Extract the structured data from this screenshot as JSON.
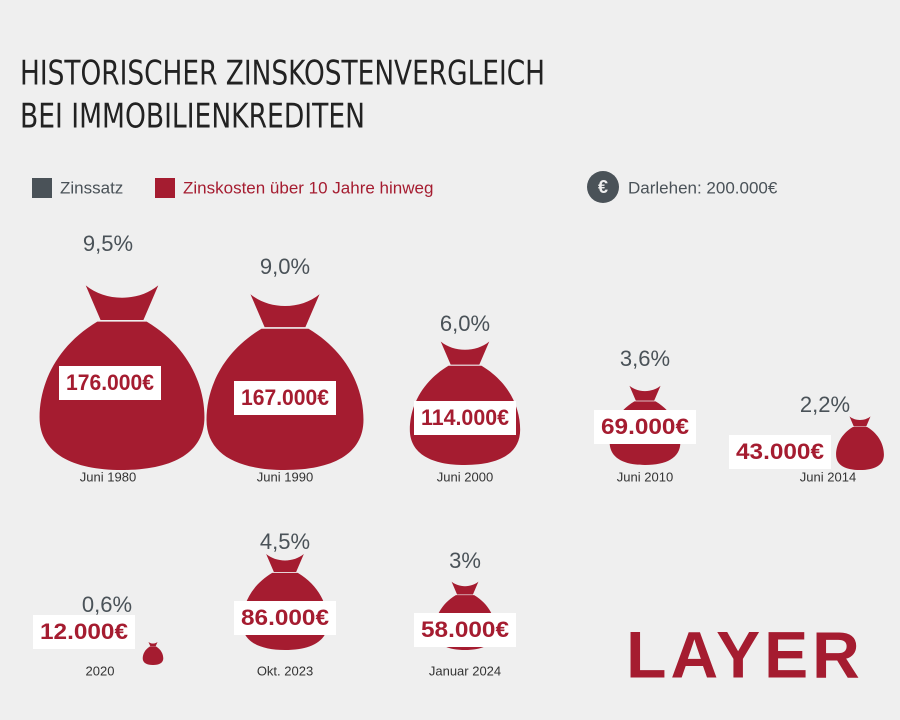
{
  "chart_data": {
    "type": "bag",
    "title": [
      "HISTORISCHER ZINSKOSTENVERGLEICH",
      "BEI IMMOBILIENKREDITEN"
    ],
    "categories": [
      "Juni 1980",
      "Juni 1990",
      "Juni 2000",
      "Juni 2010",
      "Juni 2014",
      "2020",
      "Okt. 2023",
      "Januar 2024"
    ],
    "series": [
      {
        "name": "Zinssatz",
        "color": "#4a5258",
        "values": [
          9.5,
          9.0,
          6.0,
          3.6,
          2.2,
          0.6,
          4.5,
          3
        ],
        "value_labels": [
          "9,5%",
          "9,0%",
          "6,0%",
          "3,6%",
          "2,2%",
          "0,6%",
          "4,5%",
          "3%"
        ]
      },
      {
        "name": "Zinskosten über 10 Jahre hinweg",
        "color": "#a51c30",
        "values": [
          176000,
          167000,
          114000,
          69000,
          43000,
          12000,
          86000,
          58000
        ],
        "value_labels": [
          "176.000€",
          "167.000€",
          "114.000€",
          "69.000€",
          "43.000€",
          "12.000€",
          "86.000€",
          "58.000€"
        ]
      }
    ],
    "annotation": {
      "icon": "€",
      "text": "Darlehen: 200.000€"
    },
    "logo": "LAYER"
  }
}
